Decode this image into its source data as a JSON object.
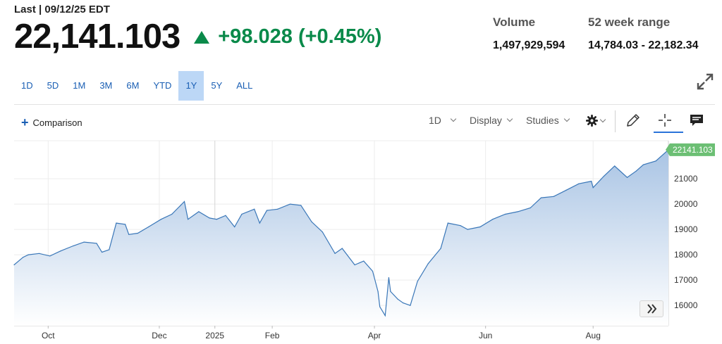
{
  "header": {
    "last_label": "Last | 09/12/25 EDT",
    "price": "22,141.103",
    "change": "+98.028 (+0.45%)",
    "change_color": "#0a8a4a",
    "direction_icon": "triangle-up-icon"
  },
  "stats": {
    "volume_label": "Volume",
    "volume_value": "1,497,929,594",
    "range_label": "52 week range",
    "range_value": "14,784.03 - 22,182.34"
  },
  "time_ranges": [
    {
      "label": "1D",
      "active": false
    },
    {
      "label": "5D",
      "active": false
    },
    {
      "label": "1M",
      "active": false
    },
    {
      "label": "3M",
      "active": false
    },
    {
      "label": "6M",
      "active": false
    },
    {
      "label": "YTD",
      "active": false
    },
    {
      "label": "1Y",
      "active": true
    },
    {
      "label": "5Y",
      "active": false
    },
    {
      "label": "ALL",
      "active": false
    }
  ],
  "toolbar": {
    "comparison_label": "Comparison",
    "interval_label": "1D",
    "display_label": "Display",
    "studies_label": "Studies",
    "settings_icon": "gear-icon",
    "draw_icon": "pencil-icon",
    "crosshair_icon": "crosshair-icon",
    "events_icon": "comment-icon",
    "expand_icon": "expand-icon",
    "forward_icon": "double-chevron-right-icon"
  },
  "chart_data": {
    "type": "area",
    "title": "",
    "xlabel": "",
    "ylabel": "",
    "line_color": "#3a77b8",
    "fill_color": "#a9c4e4",
    "grid": true,
    "ylim": [
      15200,
      22500
    ],
    "y_ticks": [
      16000,
      17000,
      18000,
      19000,
      20000,
      21000
    ],
    "y_tick_labels": [
      "16000",
      "17000",
      "18000",
      "19000",
      "20000",
      "21000"
    ],
    "x_ticks": [
      {
        "label": "Oct",
        "date": "2024-10-01"
      },
      {
        "label": "Dec",
        "date": "2024-12-02"
      },
      {
        "label": "2025",
        "date": "2025-01-02"
      },
      {
        "label": "Feb",
        "date": "2025-02-03"
      },
      {
        "label": "Apr",
        "date": "2025-04-01"
      },
      {
        "label": "Jun",
        "date": "2025-06-02"
      },
      {
        "label": "Aug",
        "date": "2025-08-01"
      }
    ],
    "x_range": [
      "2024-09-12",
      "2025-09-12"
    ],
    "last_value_label": "22141.103",
    "last_value_color": "#6cbf74",
    "series": [
      {
        "x": [
          "2024-09-12",
          "2024-09-17",
          "2024-09-20",
          "2024-09-26",
          "2024-10-02",
          "2024-10-08",
          "2024-10-15",
          "2024-10-21",
          "2024-10-28",
          "2024-10-31",
          "2024-11-04",
          "2024-11-08",
          "2024-11-13",
          "2024-11-15",
          "2024-11-20",
          "2024-11-26",
          "2024-12-03",
          "2024-12-09",
          "2024-12-16",
          "2024-12-18",
          "2024-12-24",
          "2024-12-30",
          "2025-01-03",
          "2025-01-08",
          "2025-01-13",
          "2025-01-17",
          "2025-01-24",
          "2025-01-27",
          "2025-01-31",
          "2025-02-06",
          "2025-02-13",
          "2025-02-19",
          "2025-02-25",
          "2025-03-03",
          "2025-03-10",
          "2025-03-14",
          "2025-03-21",
          "2025-03-26",
          "2025-03-31",
          "2025-04-03",
          "2025-04-04",
          "2025-04-07",
          "2025-04-09",
          "2025-04-10",
          "2025-04-14",
          "2025-04-17",
          "2025-04-21",
          "2025-04-25",
          "2025-05-01",
          "2025-05-08",
          "2025-05-12",
          "2025-05-19",
          "2025-05-23",
          "2025-05-30",
          "2025-06-06",
          "2025-06-13",
          "2025-06-20",
          "2025-06-27",
          "2025-07-03",
          "2025-07-10",
          "2025-07-17",
          "2025-07-24",
          "2025-07-31",
          "2025-08-01",
          "2025-08-07",
          "2025-08-13",
          "2025-08-20",
          "2025-08-25",
          "2025-08-29",
          "2025-09-05",
          "2025-09-12"
        ],
        "y": [
          17600,
          17900,
          18000,
          18050,
          17950,
          18150,
          18350,
          18500,
          18450,
          18100,
          18200,
          19250,
          19200,
          18800,
          18850,
          19100,
          19400,
          19600,
          20100,
          19400,
          19700,
          19450,
          19400,
          19550,
          19100,
          19600,
          19800,
          19250,
          19750,
          19800,
          20000,
          19950,
          19300,
          18900,
          18050,
          18250,
          17600,
          17750,
          17350,
          16550,
          15950,
          15600,
          17100,
          16550,
          16250,
          16100,
          16000,
          16950,
          17650,
          18250,
          19250,
          19150,
          19000,
          19100,
          19400,
          19600,
          19700,
          19850,
          20250,
          20300,
          20550,
          20800,
          20900,
          20650,
          21100,
          21500,
          21050,
          21300,
          21550,
          21700,
          22141
        ]
      }
    ]
  }
}
